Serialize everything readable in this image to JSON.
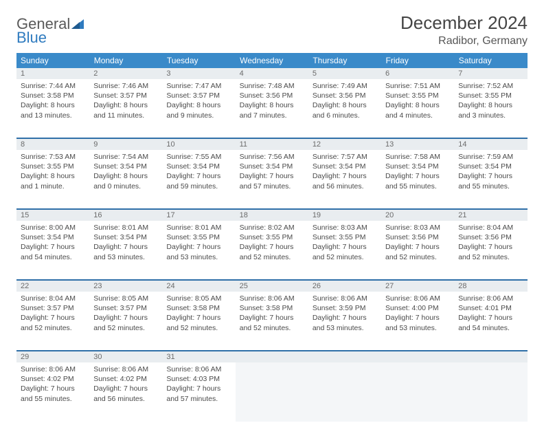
{
  "brand": {
    "word1": "General",
    "word2": "Blue"
  },
  "title": "December 2024",
  "location": "Radibor, Germany",
  "day_headers": [
    "Sunday",
    "Monday",
    "Tuesday",
    "Wednesday",
    "Thursday",
    "Friday",
    "Saturday"
  ],
  "colors": {
    "header_bg": "#3a8ac9",
    "header_text": "#ffffff",
    "daynum_bg": "#e9edf0",
    "rule": "#2f6fa8",
    "brand_blue": "#2f7bbf"
  },
  "weeks": [
    [
      {
        "n": "1",
        "sunrise": "7:44 AM",
        "sunset": "3:58 PM",
        "day_h": "8",
        "day_m": "13"
      },
      {
        "n": "2",
        "sunrise": "7:46 AM",
        "sunset": "3:57 PM",
        "day_h": "8",
        "day_m": "11"
      },
      {
        "n": "3",
        "sunrise": "7:47 AM",
        "sunset": "3:57 PM",
        "day_h": "8",
        "day_m": "9"
      },
      {
        "n": "4",
        "sunrise": "7:48 AM",
        "sunset": "3:56 PM",
        "day_h": "8",
        "day_m": "7"
      },
      {
        "n": "5",
        "sunrise": "7:49 AM",
        "sunset": "3:56 PM",
        "day_h": "8",
        "day_m": "6"
      },
      {
        "n": "6",
        "sunrise": "7:51 AM",
        "sunset": "3:55 PM",
        "day_h": "8",
        "day_m": "4"
      },
      {
        "n": "7",
        "sunrise": "7:52 AM",
        "sunset": "3:55 PM",
        "day_h": "8",
        "day_m": "3"
      }
    ],
    [
      {
        "n": "8",
        "sunrise": "7:53 AM",
        "sunset": "3:55 PM",
        "day_h": "8",
        "day_m": "1"
      },
      {
        "n": "9",
        "sunrise": "7:54 AM",
        "sunset": "3:54 PM",
        "day_h": "8",
        "day_m": "0"
      },
      {
        "n": "10",
        "sunrise": "7:55 AM",
        "sunset": "3:54 PM",
        "day_h": "7",
        "day_m": "59"
      },
      {
        "n": "11",
        "sunrise": "7:56 AM",
        "sunset": "3:54 PM",
        "day_h": "7",
        "day_m": "57"
      },
      {
        "n": "12",
        "sunrise": "7:57 AM",
        "sunset": "3:54 PM",
        "day_h": "7",
        "day_m": "56"
      },
      {
        "n": "13",
        "sunrise": "7:58 AM",
        "sunset": "3:54 PM",
        "day_h": "7",
        "day_m": "55"
      },
      {
        "n": "14",
        "sunrise": "7:59 AM",
        "sunset": "3:54 PM",
        "day_h": "7",
        "day_m": "55"
      }
    ],
    [
      {
        "n": "15",
        "sunrise": "8:00 AM",
        "sunset": "3:54 PM",
        "day_h": "7",
        "day_m": "54"
      },
      {
        "n": "16",
        "sunrise": "8:01 AM",
        "sunset": "3:54 PM",
        "day_h": "7",
        "day_m": "53"
      },
      {
        "n": "17",
        "sunrise": "8:01 AM",
        "sunset": "3:55 PM",
        "day_h": "7",
        "day_m": "53"
      },
      {
        "n": "18",
        "sunrise": "8:02 AM",
        "sunset": "3:55 PM",
        "day_h": "7",
        "day_m": "52"
      },
      {
        "n": "19",
        "sunrise": "8:03 AM",
        "sunset": "3:55 PM",
        "day_h": "7",
        "day_m": "52"
      },
      {
        "n": "20",
        "sunrise": "8:03 AM",
        "sunset": "3:56 PM",
        "day_h": "7",
        "day_m": "52"
      },
      {
        "n": "21",
        "sunrise": "8:04 AM",
        "sunset": "3:56 PM",
        "day_h": "7",
        "day_m": "52"
      }
    ],
    [
      {
        "n": "22",
        "sunrise": "8:04 AM",
        "sunset": "3:57 PM",
        "day_h": "7",
        "day_m": "52"
      },
      {
        "n": "23",
        "sunrise": "8:05 AM",
        "sunset": "3:57 PM",
        "day_h": "7",
        "day_m": "52"
      },
      {
        "n": "24",
        "sunrise": "8:05 AM",
        "sunset": "3:58 PM",
        "day_h": "7",
        "day_m": "52"
      },
      {
        "n": "25",
        "sunrise": "8:06 AM",
        "sunset": "3:58 PM",
        "day_h": "7",
        "day_m": "52"
      },
      {
        "n": "26",
        "sunrise": "8:06 AM",
        "sunset": "3:59 PM",
        "day_h": "7",
        "day_m": "53"
      },
      {
        "n": "27",
        "sunrise": "8:06 AM",
        "sunset": "4:00 PM",
        "day_h": "7",
        "day_m": "53"
      },
      {
        "n": "28",
        "sunrise": "8:06 AM",
        "sunset": "4:01 PM",
        "day_h": "7",
        "day_m": "54"
      }
    ],
    [
      {
        "n": "29",
        "sunrise": "8:06 AM",
        "sunset": "4:02 PM",
        "day_h": "7",
        "day_m": "55"
      },
      {
        "n": "30",
        "sunrise": "8:06 AM",
        "sunset": "4:02 PM",
        "day_h": "7",
        "day_m": "56"
      },
      {
        "n": "31",
        "sunrise": "8:06 AM",
        "sunset": "4:03 PM",
        "day_h": "7",
        "day_m": "57"
      },
      {
        "empty": true
      },
      {
        "empty": true
      },
      {
        "empty": true
      },
      {
        "empty": true
      }
    ]
  ],
  "labels": {
    "sunrise": "Sunrise:",
    "sunset": "Sunset:",
    "daylight_prefix": "Daylight:",
    "hours_word": "hours",
    "and_word": "and",
    "minutes_word": "minutes.",
    "minute_word": "minute."
  }
}
